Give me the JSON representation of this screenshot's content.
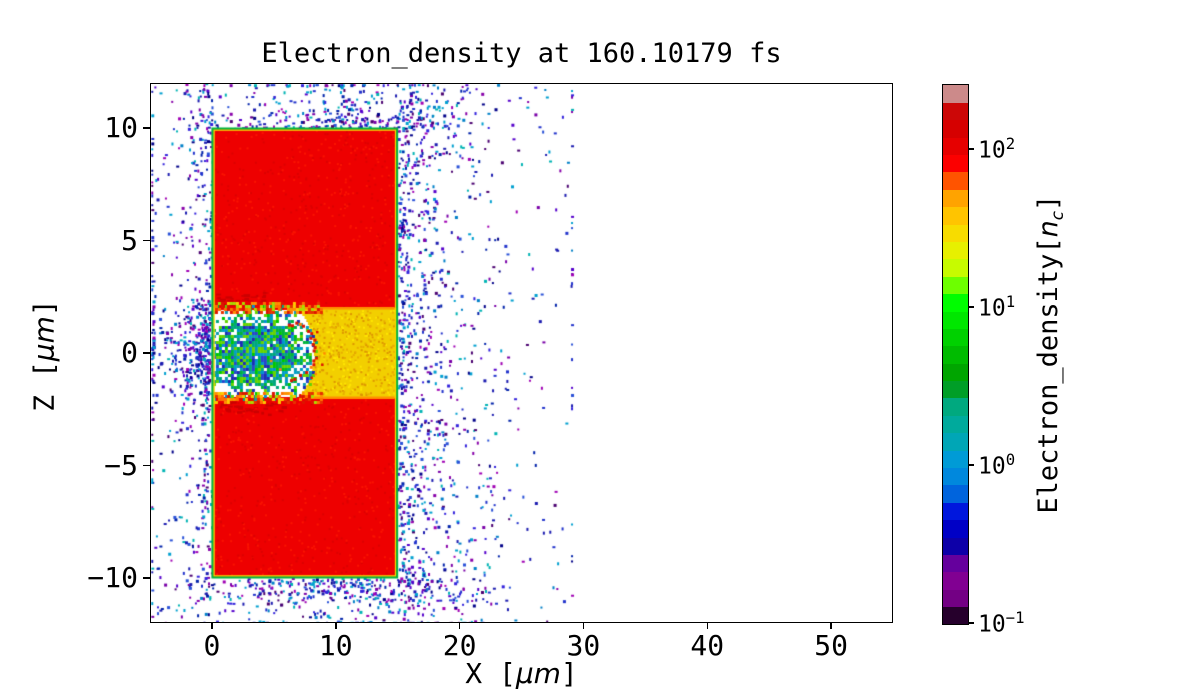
{
  "figure": {
    "background": "#ffffff",
    "kind": "matplotlib-style 2D particle-in-cell simulation density map"
  },
  "chart_data": {
    "type": "heatmap",
    "title": "Electron_density at 160.10179 fs",
    "time_fs": 160.10179,
    "xlabel_parts": {
      "prefix": "X [",
      "italic": "μm",
      "suffix": "]"
    },
    "ylabel_parts": {
      "prefix": "Z [",
      "italic": "μm",
      "suffix": "]"
    },
    "xlim": [
      -5,
      55
    ],
    "ylim": [
      -12,
      12
    ],
    "xticks": [
      0,
      10,
      20,
      30,
      40,
      50
    ],
    "xtick_labels": [
      "0",
      "10",
      "20",
      "30",
      "40",
      "50"
    ],
    "yticks": [
      10,
      5,
      0,
      -5,
      -10
    ],
    "ytick_labels": [
      "10",
      "5",
      "0",
      "−5",
      "−10"
    ],
    "grid": false,
    "colorbar": {
      "label_parts": {
        "prefix": "Electron_density[",
        "italic": "n",
        "sub": "c",
        "suffix": "]"
      },
      "scale": "log",
      "vmin_decade": -1,
      "vmax_decade": 2.41,
      "ticks": [
        {
          "base": "10",
          "exp": "2",
          "decade": 2
        },
        {
          "base": "10",
          "exp": "1",
          "decade": 1
        },
        {
          "base": "10",
          "exp": "0",
          "decade": 0
        },
        {
          "base": "10",
          "exp": "−1",
          "decade": -1
        }
      ],
      "colormap": "nipy_spectral (discretized)",
      "band_colors_bottom_to_top": [
        "#26002c",
        "#730084",
        "#810092",
        "#65009d",
        "#0d00a8",
        "#0000c6",
        "#0017dd",
        "#0064dd",
        "#0088dd",
        "#009bd6",
        "#00a6b6",
        "#00aa9c",
        "#00a97f",
        "#009e27",
        "#00a500",
        "#00bb00",
        "#00d100",
        "#00e700",
        "#00fd00",
        "#6dff00",
        "#c7fb00",
        "#e7f000",
        "#f7dc00",
        "#ffc400",
        "#ffa300",
        "#ff5400",
        "#fc0000",
        "#e60000",
        "#d60000",
        "#cc0707",
        "#cc8a8a"
      ]
    },
    "features": {
      "plasma_slab": {
        "x_um": [
          0,
          15
        ],
        "z_um": [
          -10,
          10
        ],
        "approx_density_nc": 150,
        "fill": "#ee0000",
        "noise": [
          "#dd0000",
          "#fb1400"
        ],
        "edge_outer": "#00b43c",
        "edge_inner": "#ffd800"
      },
      "laser_channel": {
        "x_um": [
          7.2,
          15
        ],
        "z_um": [
          -2,
          2
        ],
        "approx_density_nc": 25,
        "fill": "#f2cf00",
        "noise": [
          "#e8ae00",
          "#ffe600",
          "#de9600"
        ],
        "edge": "#ff9000"
      },
      "turbulent_cavity": {
        "x_um": [
          -0.2,
          8.3
        ],
        "z_um": [
          -2.4,
          2.4
        ],
        "center_um": [
          3.6,
          0
        ],
        "sigma_um": [
          2.7,
          1.1
        ],
        "palette": [
          "#00b43c",
          "#00b43c",
          "#00a87e",
          "#00a87e",
          "#00a0c8",
          "#0090d2",
          "#2846cc",
          "#1c2cb4",
          "#66d400",
          "#66d400",
          "#00c800",
          "#129ab4",
          "#ffffff"
        ],
        "fringe_palette": [
          "#ff9000",
          "#ff7000",
          "#e83000",
          "#ffc800",
          "#dd1400",
          "#aadd00"
        ]
      },
      "bow_front": {
        "center_um": [
          6.1,
          0.05
        ],
        "radius_um": 2.3,
        "dot_colors": [
          "#dd1400",
          "#ff8800"
        ]
      },
      "scattered_electrons": {
        "x_extent_um": [
          -5,
          29
        ],
        "approx_count": 3000,
        "palette": [
          "#2233cc",
          "#2233cc",
          "#1b1bb0",
          "#1b1bb0",
          "#2a52d8",
          "#3322dd",
          "#0022aa",
          "#00a0d0",
          "#00a0d0",
          "#00b4b4",
          "#0080c8",
          "#7a00a8",
          "#a000b4",
          "#4a0070",
          "#8800aa",
          "#5500cc",
          "#000088"
        ]
      }
    }
  }
}
